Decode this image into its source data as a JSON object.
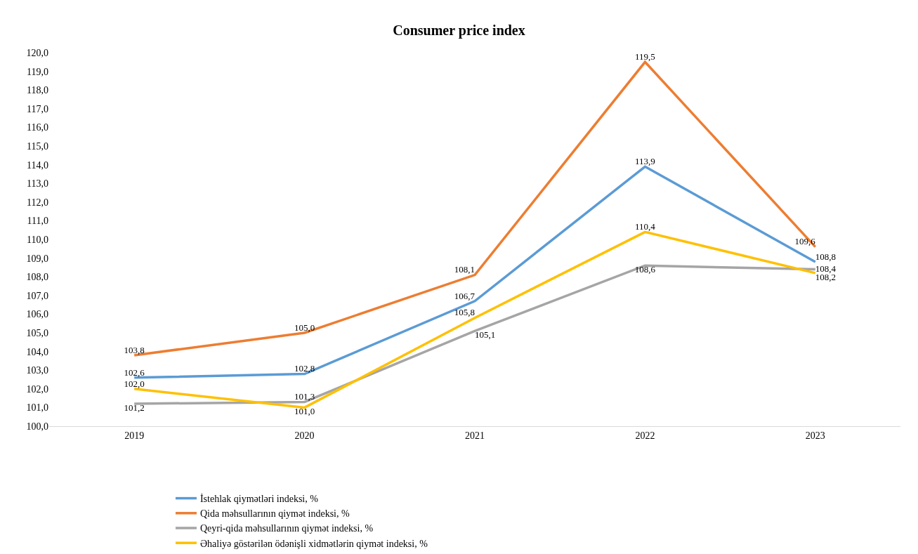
{
  "chart_data": {
    "type": "line",
    "title": "Consumer price index",
    "categories": [
      "2019",
      "2020",
      "2021",
      "2022",
      "2023"
    ],
    "series": [
      {
        "name": "İstehlak qiymətləri indeksi, %",
        "color": "#5b9bd5",
        "values": [
          102.6,
          102.8,
          106.7,
          113.9,
          108.8
        ],
        "value_labels": [
          "102,6",
          "102,8",
          "106,7",
          "113,9",
          "108,8"
        ]
      },
      {
        "name": "Qida məhsullarının qiymət indeksi, %",
        "color": "#ed7d31",
        "values": [
          103.8,
          105.0,
          108.1,
          119.5,
          109.6
        ],
        "value_labels": [
          "103,8",
          "105,0",
          "108,1",
          "119,5",
          "109,6"
        ]
      },
      {
        "name": "Qeyri-qida məhsullarının qiymət indeksi, %",
        "color": "#a5a5a5",
        "values": [
          101.2,
          101.3,
          105.1,
          108.6,
          108.4
        ],
        "value_labels": [
          "101,2",
          "101,3",
          "105,1",
          "108,6",
          "108,4"
        ]
      },
      {
        "name": "Əhaliyə göstərilən ödənişli xidmətlərin qiymət indeksi, %",
        "color": "#ffc000",
        "values": [
          102.0,
          101.0,
          105.8,
          110.4,
          108.2
        ],
        "value_labels": [
          "102,0",
          "101,0",
          "105,8",
          "110,4",
          "108,2"
        ]
      }
    ],
    "ylim": [
      100,
      120
    ],
    "yticks": [
      {
        "value": 100,
        "label": "100,0"
      },
      {
        "value": 101,
        "label": "101,0"
      },
      {
        "value": 102,
        "label": "102,0"
      },
      {
        "value": 103,
        "label": "103,0"
      },
      {
        "value": 104,
        "label": "104,0"
      },
      {
        "value": 105,
        "label": "105,0"
      },
      {
        "value": 106,
        "label": "106,0"
      },
      {
        "value": 107,
        "label": "107,0"
      },
      {
        "value": 108,
        "label": "108,0"
      },
      {
        "value": 109,
        "label": "109,0"
      },
      {
        "value": 110,
        "label": "110,0"
      },
      {
        "value": 111,
        "label": "111,0"
      },
      {
        "value": 112,
        "label": "112,0"
      },
      {
        "value": 113,
        "label": "113,0"
      },
      {
        "value": 114,
        "label": "114,0"
      },
      {
        "value": 115,
        "label": "115,0"
      },
      {
        "value": 116,
        "label": "116,0"
      },
      {
        "value": 117,
        "label": "117,0"
      },
      {
        "value": 118,
        "label": "118,0"
      },
      {
        "value": 119,
        "label": "119,0"
      },
      {
        "value": 120,
        "label": "120,0"
      }
    ],
    "grid": false,
    "legend": "bottom",
    "marker": "none",
    "line_style": "solid"
  }
}
